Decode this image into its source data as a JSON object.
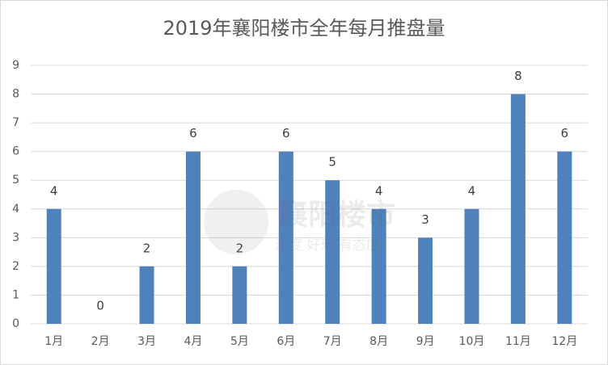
{
  "chart_data": {
    "type": "bar",
    "title": "2019年襄阳楼市全年每月推盘量",
    "categories": [
      "1月",
      "2月",
      "3月",
      "4月",
      "5月",
      "6月",
      "7月",
      "8月",
      "9月",
      "10月",
      "11月",
      "12月"
    ],
    "values": [
      4,
      0,
      2,
      6,
      2,
      6,
      5,
      4,
      3,
      4,
      8,
      6
    ],
    "color": "#4f81bd",
    "ylim": [
      0,
      9
    ],
    "yticks": [
      0,
      1,
      2,
      3,
      4,
      5,
      6,
      7,
      8,
      9
    ],
    "grid": true,
    "watermark": [
      "襄阳楼市",
      "深度 好玩 有态度"
    ]
  }
}
